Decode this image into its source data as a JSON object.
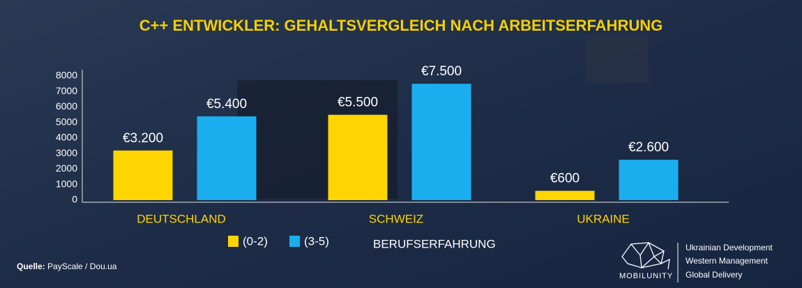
{
  "chart_data": {
    "type": "bar",
    "title": "C++ ENTWICKLER: GEHALTSVERGLEICH NACH ARBEITSERFAHRUNG",
    "categories": [
      "DEUTSCHLAND",
      "SCHWEIZ",
      "UKRAINE"
    ],
    "series": [
      {
        "name": "(0-2)",
        "color": "#ffd500",
        "values": [
          3200,
          5500,
          600
        ],
        "value_labels": [
          "€3.200",
          "€5.500",
          "€600"
        ]
      },
      {
        "name": "(3-5)",
        "color": "#1aaeef",
        "values": [
          5400,
          7500,
          2600
        ],
        "value_labels": [
          "€5.400",
          "€7.500",
          "€2.600"
        ]
      }
    ],
    "legend_title": "BERUFSERFAHRUNG",
    "ylim": [
      0,
      8000
    ],
    "yticks": [
      0,
      1000,
      2000,
      3000,
      4000,
      5000,
      6000,
      7000,
      8000
    ],
    "grid": false,
    "source_label": "Quelle:",
    "source": "PayScale / Dou.ua"
  },
  "branding": {
    "name": "MOBILUNITY",
    "taglines": [
      "Ukrainian Development",
      "Western Management",
      "Global Delivery"
    ]
  }
}
